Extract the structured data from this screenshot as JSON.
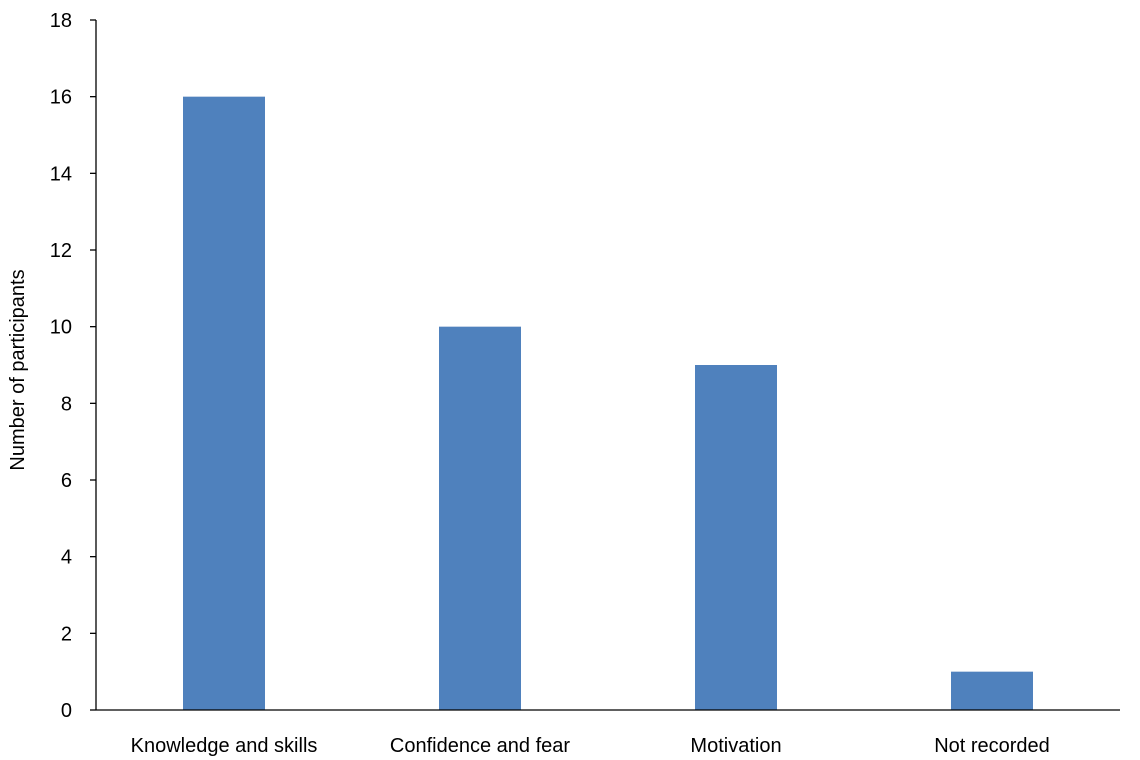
{
  "chart_data": {
    "type": "bar",
    "title": "",
    "xlabel": "",
    "ylabel": "Number of participants",
    "categories": [
      "Knowledge and skills",
      "Confidence and fear",
      "Motivation",
      "Not recorded"
    ],
    "values": [
      16,
      10,
      9,
      1
    ],
    "ylim": [
      0,
      18
    ],
    "yticks": [
      0,
      2,
      4,
      6,
      8,
      10,
      12,
      14,
      16,
      18
    ],
    "grid": false,
    "legend": "none",
    "bar_color": "#4f81bd"
  }
}
